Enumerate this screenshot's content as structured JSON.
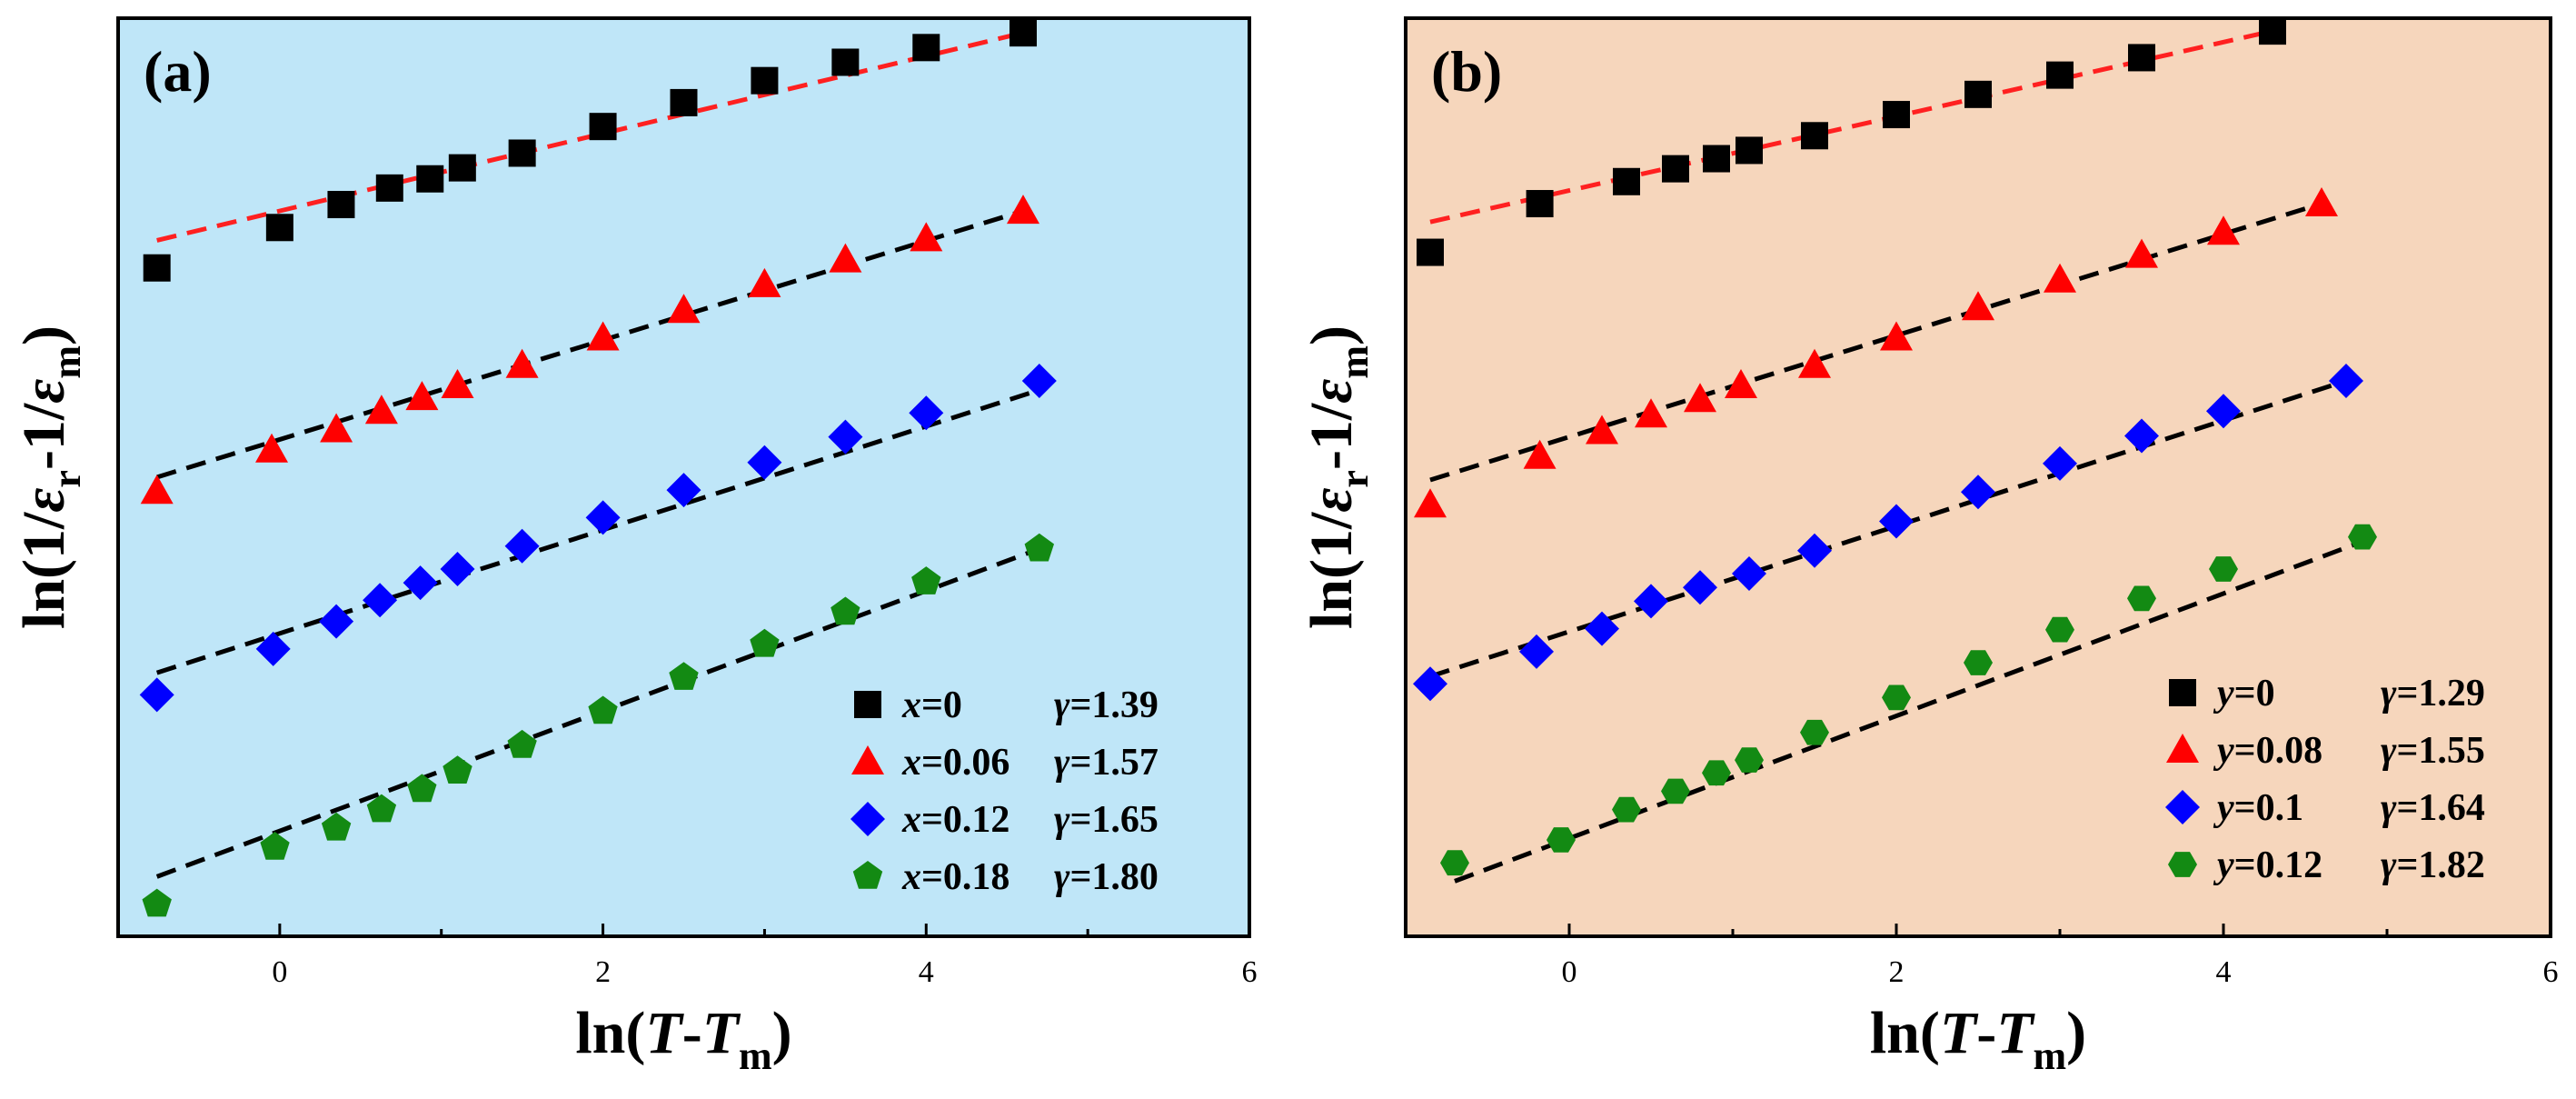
{
  "x_axis": {
    "label_prefix": "ln(",
    "label_T": "T",
    "label_dash": "-",
    "label_Tm": "T",
    "label_m": "m",
    "label_suffix": ")"
  },
  "y_axis": {
    "label_prefix": "ln(1/",
    "label_eps1": "ε",
    "label_r": "r",
    "label_mid": "-1/",
    "label_eps2": "ε",
    "label_m": "m",
    "label_suffix": ")"
  },
  "chart_data": [
    {
      "type": "scatter",
      "panel_label": "(a)",
      "background": "#bfe6f8",
      "xlim": [
        -1,
        6
      ],
      "ylim": [
        0,
        10
      ],
      "x_ticks": [
        0,
        2,
        4,
        6
      ],
      "y_ticks_labeled": false,
      "legend_position": "bottom-right",
      "series": [
        {
          "name": "x=0",
          "var": "x",
          "val": "=0",
          "gamma_label": "γ",
          "gamma": "=1.39",
          "marker": "square",
          "color": "#000000",
          "fit_color": "#ff2020",
          "x": [
            -0.76,
            0.0,
            0.38,
            0.68,
            0.93,
            1.13,
            1.5,
            2.0,
            2.5,
            3.0,
            3.5,
            4.0,
            4.6
          ],
          "y": [
            7.28,
            7.72,
            7.97,
            8.15,
            8.25,
            8.37,
            8.53,
            8.82,
            9.08,
            9.32,
            9.52,
            9.68,
            9.84
          ],
          "fit": [
            [
              -0.76,
              7.58
            ],
            [
              4.6,
              9.84
            ]
          ]
        },
        {
          "name": "x=0.06",
          "var": "x",
          "val": "=0.06",
          "gamma_label": "γ",
          "gamma": "=1.57",
          "marker": "triangle",
          "color": "#ff0000",
          "fit_color": "#000000",
          "x": [
            -0.76,
            -0.05,
            0.35,
            0.63,
            0.88,
            1.1,
            1.5,
            2.0,
            2.5,
            3.0,
            3.5,
            4.0,
            4.6
          ],
          "y": [
            4.85,
            5.3,
            5.52,
            5.72,
            5.87,
            6.0,
            6.22,
            6.52,
            6.82,
            7.1,
            7.37,
            7.6,
            7.9
          ],
          "fit": [
            [
              -0.76,
              5.0
            ],
            [
              4.6,
              7.9
            ]
          ]
        },
        {
          "name": "x=0.12",
          "var": "x",
          "val": "=0.12",
          "gamma_label": "γ",
          "gamma": "=1.65",
          "marker": "diamond",
          "color": "#0000ff",
          "fit_color": "#000000",
          "x": [
            -0.76,
            -0.04,
            0.35,
            0.62,
            0.87,
            1.1,
            1.5,
            2.0,
            2.5,
            3.0,
            3.5,
            4.0,
            4.7
          ],
          "y": [
            2.63,
            3.13,
            3.43,
            3.66,
            3.85,
            4.0,
            4.25,
            4.56,
            4.86,
            5.16,
            5.44,
            5.7,
            6.05
          ],
          "fit": [
            [
              -0.76,
              2.87
            ],
            [
              4.7,
              5.95
            ]
          ]
        },
        {
          "name": "x=0.18",
          "var": "x",
          "val": "=0.18",
          "gamma_label": "γ",
          "gamma": "=1.80",
          "marker": "pentagon",
          "color": "#138a13",
          "fit_color": "#000000",
          "x": [
            -0.76,
            -0.03,
            0.35,
            0.63,
            0.88,
            1.1,
            1.5,
            2.0,
            2.5,
            3.0,
            3.5,
            4.0,
            4.7
          ],
          "y": [
            0.35,
            0.97,
            1.18,
            1.38,
            1.6,
            1.8,
            2.08,
            2.45,
            2.82,
            3.18,
            3.53,
            3.86,
            4.22
          ],
          "fit": [
            [
              -0.76,
              0.65
            ],
            [
              4.7,
              4.22
            ]
          ]
        }
      ]
    },
    {
      "type": "scatter",
      "panel_label": "(b)",
      "background": "#f6d6bc",
      "xlim": [
        -1,
        6
      ],
      "ylim": [
        0,
        10
      ],
      "x_ticks": [
        0,
        2,
        4,
        6
      ],
      "y_ticks_labeled": false,
      "legend_position": "bottom-right",
      "series": [
        {
          "name": "y=0",
          "var": "y",
          "val": "=0",
          "gamma_label": "γ",
          "gamma": "=1.29",
          "marker": "square",
          "color": "#000000",
          "fit_color": "#ff2020",
          "x": [
            -0.85,
            -0.18,
            0.35,
            0.65,
            0.9,
            1.1,
            1.5,
            2.0,
            2.5,
            3.0,
            3.5,
            4.3
          ],
          "y": [
            7.45,
            7.98,
            8.22,
            8.36,
            8.47,
            8.56,
            8.72,
            8.95,
            9.17,
            9.38,
            9.57,
            9.86
          ],
          "fit": [
            [
              -0.85,
              7.78
            ],
            [
              4.3,
              9.86
            ]
          ]
        },
        {
          "name": "y=0.08",
          "var": "y",
          "val": "=0.08",
          "gamma_label": "γ",
          "gamma": "=1.55",
          "marker": "triangle",
          "color": "#ff0000",
          "fit_color": "#000000",
          "x": [
            -0.85,
            -0.18,
            0.2,
            0.5,
            0.8,
            1.05,
            1.5,
            2.0,
            2.5,
            3.0,
            3.5,
            4.0,
            4.6
          ],
          "y": [
            4.7,
            5.23,
            5.5,
            5.68,
            5.85,
            6.0,
            6.22,
            6.52,
            6.85,
            7.15,
            7.42,
            7.67,
            7.98
          ],
          "fit": [
            [
              -0.85,
              4.97
            ],
            [
              4.6,
              7.98
            ]
          ]
        },
        {
          "name": "y=0.1",
          "var": "y",
          "val": "=0.1",
          "gamma_label": "γ",
          "gamma": "=1.64",
          "marker": "diamond",
          "color": "#0000ff",
          "fit_color": "#000000",
          "x": [
            -0.85,
            -0.2,
            0.2,
            0.5,
            0.8,
            1.1,
            1.5,
            2.0,
            2.5,
            3.0,
            3.5,
            4.0,
            4.75
          ],
          "y": [
            2.75,
            3.1,
            3.35,
            3.65,
            3.8,
            3.95,
            4.2,
            4.52,
            4.84,
            5.15,
            5.45,
            5.72,
            6.05
          ],
          "fit": [
            [
              -0.85,
              2.83
            ],
            [
              4.75,
              6.05
            ]
          ]
        },
        {
          "name": "y=0.12",
          "var": "y",
          "val": "=0.12",
          "gamma_label": "γ",
          "gamma": "=1.82",
          "marker": "hexagon",
          "color": "#138a13",
          "fit_color": "#000000",
          "x": [
            -0.7,
            -0.05,
            0.35,
            0.65,
            0.9,
            1.1,
            1.5,
            2.0,
            2.5,
            3.0,
            3.5,
            4.0,
            4.85
          ],
          "y": [
            0.8,
            1.05,
            1.38,
            1.58,
            1.78,
            1.92,
            2.22,
            2.6,
            2.98,
            3.34,
            3.68,
            4.0,
            4.35
          ],
          "fit": [
            [
              -0.7,
              0.6
            ],
            [
              4.85,
              4.3
            ]
          ]
        }
      ]
    }
  ]
}
